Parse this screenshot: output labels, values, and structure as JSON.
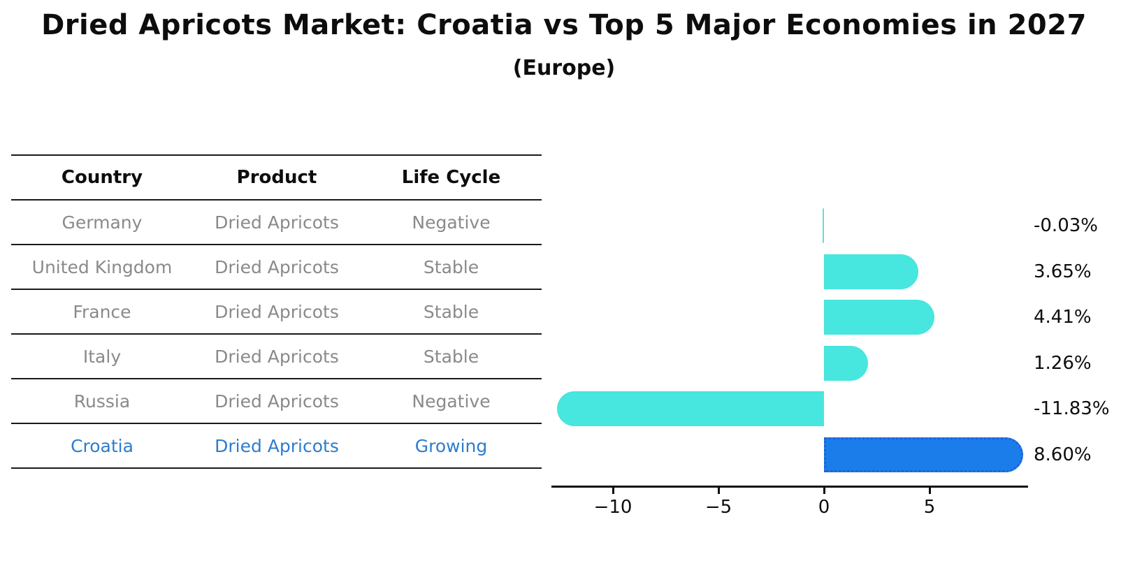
{
  "title": "Dried Apricots Market: Croatia vs Top 5 Major Economies in 2027",
  "subtitle": "(Europe)",
  "table": {
    "headers": [
      "Country",
      "Product",
      "Life Cycle"
    ],
    "rows": [
      {
        "country": "Germany",
        "product": "Dried Apricots",
        "life_cycle": "Negative",
        "highlight": false
      },
      {
        "country": "United Kingdom",
        "product": "Dried Apricots",
        "life_cycle": "Stable",
        "highlight": false
      },
      {
        "country": "France",
        "product": "Dried Apricots",
        "life_cycle": "Stable",
        "highlight": false
      },
      {
        "country": "Italy",
        "product": "Dried Apricots",
        "life_cycle": "Stable",
        "highlight": false
      },
      {
        "country": "Russia",
        "product": "Dried Apricots",
        "life_cycle": "Negative",
        "highlight": false
      },
      {
        "country": "Croatia",
        "product": "Dried Apricots",
        "life_cycle": "Growing",
        "highlight": true
      }
    ]
  },
  "chart_data": {
    "type": "bar",
    "orientation": "horizontal",
    "title": "Dried Apricots Market: Croatia vs Top 5 Major Economies in 2027 (Europe)",
    "categories": [
      "Germany",
      "United Kingdom",
      "France",
      "Italy",
      "Russia",
      "Croatia"
    ],
    "values": [
      -0.03,
      3.65,
      4.41,
      1.26,
      -11.83,
      8.6
    ],
    "value_labels": [
      "-0.03%",
      "3.65%",
      "4.41%",
      "1.26%",
      "-11.83%",
      "8.60%"
    ],
    "x_ticks": [
      -10,
      -5,
      0,
      5
    ],
    "x_tick_labels": [
      "−10",
      "−5",
      "0",
      "5"
    ],
    "xlim": [
      -12.9,
      9.6
    ],
    "grid": false,
    "legend": false,
    "highlight_index": 5,
    "colors": {
      "bar": "#47e6de",
      "tiny_bar": "#6fd8d2",
      "highlight_bar": "#1b7de9",
      "highlight_border": "#2162d4",
      "axis": "#0d0d0d",
      "value_label": "#0d0d0d"
    }
  },
  "colors": {
    "background": "#ffffff",
    "heading_text": "#0d0d0d",
    "table_text": "#8a8a8a",
    "highlight_text": "#2e7ccd",
    "table_line": "#1a1a1a"
  }
}
